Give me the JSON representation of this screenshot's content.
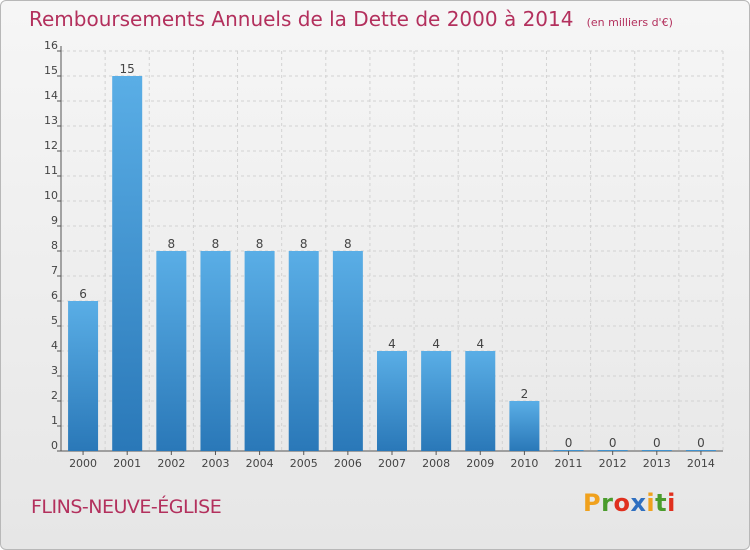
{
  "header": {
    "title": "Remboursements Annuels de la Dette de 2000 à 2014",
    "unit": "(en milliers d'€)"
  },
  "footer": {
    "commune": "FLINS-NEUVE-ÉGLISE",
    "logo_letters": [
      "P",
      "r",
      "o",
      "x",
      "i",
      "t",
      "i"
    ],
    "logo_colors": [
      "#f0a11d",
      "#4a9c2c",
      "#e0301e",
      "#2f6fc0",
      "#f0a11d",
      "#4a9c2c",
      "#e0301e"
    ]
  },
  "colors": {
    "accent": "#b3305d",
    "bar_top": "#5aaee6",
    "bar_bottom": "#2a78b8"
  },
  "chart_data": {
    "type": "bar",
    "title": "Remboursements Annuels de la Dette de 2000 à 2014",
    "categories": [
      "2000",
      "2001",
      "2002",
      "2003",
      "2004",
      "2005",
      "2006",
      "2007",
      "2008",
      "2009",
      "2010",
      "2011",
      "2012",
      "2013",
      "2014"
    ],
    "values": [
      6,
      15,
      8,
      8,
      8,
      8,
      8,
      4,
      4,
      4,
      2,
      0,
      0,
      0,
      0
    ],
    "ylim": [
      0,
      16
    ],
    "yticks": [
      0,
      1,
      2,
      3,
      4,
      5,
      6,
      7,
      8,
      9,
      10,
      11,
      12,
      13,
      14,
      15,
      16
    ],
    "grid": true
  }
}
